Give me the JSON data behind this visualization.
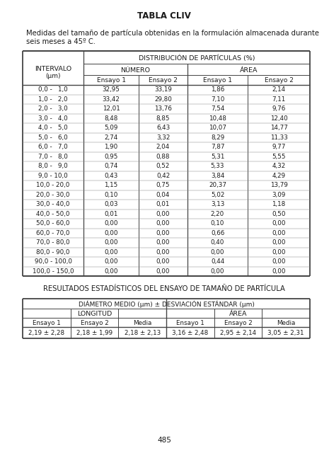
{
  "title": "TABLA CLIV",
  "subtitle_line1": "Medidas del tamaño de partícula obtenidas en la formulación almacenada durante",
  "subtitle_line2": "seis meses a 45º C.",
  "table1_header1": "DISTRIBUCIÓN DE PARTÍCULAS (%)",
  "table1_num_header": "NÚMERO",
  "table1_area_header": "ÁREA",
  "table1_ensayo1": "Ensayo 1",
  "table1_ensayo2": "Ensayo 2",
  "intervals": [
    "0,0 -   1,0",
    "1,0 -   2,0",
    "2,0 -   3,0",
    "3,0 -   4,0",
    "4,0 -   5,0",
    "5,0 -   6,0",
    "6,0 -   7,0",
    "7,0 -   8,0",
    "8,0 -   9,0",
    "9,0 - 10,0",
    "10,0 - 20,0",
    "20,0 - 30,0",
    "30,0 - 40,0",
    "40,0 - 50,0",
    "50,0 - 60,0",
    "60,0 - 70,0",
    "70,0 - 80,0",
    "80,0 - 90,0",
    "90,0 - 100,0",
    "100,0 - 150,0"
  ],
  "num_ensayo1": [
    "32,95",
    "33,42",
    "12,01",
    "8,48",
    "5,09",
    "2,74",
    "1,90",
    "0,95",
    "0,74",
    "0,43",
    "1,15",
    "0,10",
    "0,03",
    "0,01",
    "0,00",
    "0,00",
    "0,00",
    "0,00",
    "0,00",
    "0,00"
  ],
  "num_ensayo2": [
    "33,19",
    "29,80",
    "13,76",
    "8,85",
    "6,43",
    "3,32",
    "2,04",
    "0,88",
    "0,52",
    "0,42",
    "0,75",
    "0,04",
    "0,01",
    "0,00",
    "0,00",
    "0,00",
    "0,00",
    "0,00",
    "0,00",
    "0,00"
  ],
  "area_ensayo1": [
    "1,86",
    "7,10",
    "7,54",
    "10,48",
    "10,07",
    "8,29",
    "7,87",
    "5,31",
    "5,33",
    "3,84",
    "20,37",
    "5,02",
    "3,13",
    "2,20",
    "0,10",
    "0,66",
    "0,40",
    "0,00",
    "0,44",
    "0,00"
  ],
  "area_ensayo2": [
    "2,14",
    "7,11",
    "9,76",
    "12,40",
    "14,77",
    "11,33",
    "9,77",
    "5,55",
    "4,32",
    "4,29",
    "13,79",
    "3,09",
    "1,18",
    "0,50",
    "0,00",
    "0,00",
    "0,00",
    "0,00",
    "0,00",
    "0,00"
  ],
  "table2_title": "RESULTADOS ESTADÍSTICOS DEL ENSAYO DE TAMAÑO DE PARTÍCULA",
  "table2_header": "DIÁMETRO MEDIO (μm) ± DESVIACIÓN ESTÁNDAR (μm)",
  "table2_longitud": "LONGITUD",
  "table2_area": "ÁREA",
  "table2_ensayo1": "Ensayo 1",
  "table2_ensayo2": "Ensayo 2",
  "table2_media": "Media",
  "long_e1": "2,19 ± 2,28",
  "long_e2": "2,18 ± 1,99",
  "long_media": "2,18 ± 2,13",
  "area_e1": "3,16 ± 2,48",
  "area_e2": "2,95 ± 2,14",
  "area_media": "3,05 ± 2,31",
  "page_num": "485",
  "bg_color": "#ffffff",
  "text_color": "#1a1a1a",
  "line_color": "#444444"
}
